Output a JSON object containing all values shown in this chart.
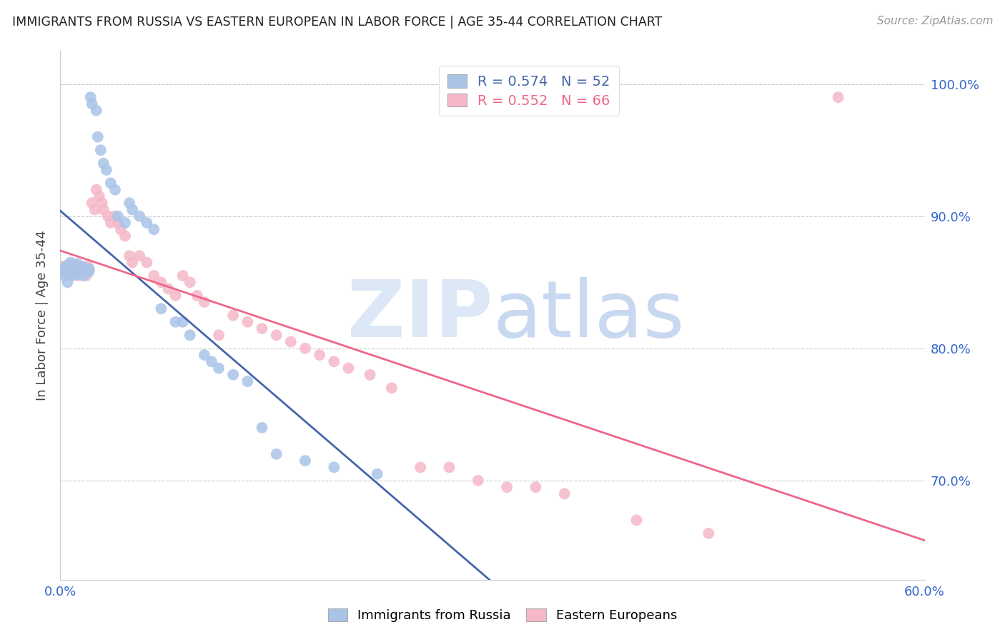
{
  "title": "IMMIGRANTS FROM RUSSIA VS EASTERN EUROPEAN IN LABOR FORCE | AGE 35-44 CORRELATION CHART",
  "source": "Source: ZipAtlas.com",
  "ylabel": "In Labor Force | Age 35-44",
  "legend_labels": [
    "Immigrants from Russia",
    "Eastern Europeans"
  ],
  "r_russia": 0.574,
  "n_russia": 52,
  "r_eastern": 0.552,
  "n_eastern": 66,
  "blue_color": "#aac4e8",
  "pink_color": "#f5b8c8",
  "blue_line_color": "#4466aa",
  "pink_line_color": "#ee6688",
  "background_color": "#ffffff",
  "xlim": [
    0.0,
    0.6
  ],
  "ylim": [
    0.625,
    1.025
  ],
  "ytick_vals": [
    0.7,
    0.8,
    0.9,
    1.0
  ],
  "ytick_labels": [
    "70.0%",
    "80.0%",
    "90.0%",
    "100.0%"
  ],
  "russia_x": [
    0.002,
    0.003,
    0.004,
    0.005,
    0.005,
    0.006,
    0.007,
    0.007,
    0.008,
    0.008,
    0.009,
    0.01,
    0.01,
    0.011,
    0.012,
    0.013,
    0.014,
    0.015,
    0.016,
    0.018,
    0.02,
    0.02,
    0.021,
    0.022,
    0.025,
    0.026,
    0.028,
    0.03,
    0.032,
    0.035,
    0.038,
    0.04,
    0.045,
    0.048,
    0.05,
    0.055,
    0.06,
    0.065,
    0.07,
    0.08,
    0.085,
    0.09,
    0.1,
    0.105,
    0.11,
    0.12,
    0.13,
    0.14,
    0.15,
    0.17,
    0.19,
    0.22
  ],
  "russia_y": [
    0.86,
    0.855,
    0.862,
    0.858,
    0.85,
    0.863,
    0.857,
    0.865,
    0.86,
    0.855,
    0.858,
    0.86,
    0.862,
    0.856,
    0.864,
    0.858,
    0.86,
    0.862,
    0.855,
    0.86,
    0.858,
    0.86,
    0.99,
    0.985,
    0.98,
    0.96,
    0.95,
    0.94,
    0.935,
    0.925,
    0.92,
    0.9,
    0.895,
    0.91,
    0.905,
    0.9,
    0.895,
    0.89,
    0.83,
    0.82,
    0.82,
    0.81,
    0.795,
    0.79,
    0.785,
    0.78,
    0.775,
    0.74,
    0.72,
    0.715,
    0.71,
    0.705
  ],
  "eastern_x": [
    0.002,
    0.003,
    0.004,
    0.005,
    0.005,
    0.006,
    0.007,
    0.007,
    0.008,
    0.009,
    0.01,
    0.011,
    0.012,
    0.013,
    0.014,
    0.015,
    0.016,
    0.017,
    0.018,
    0.019,
    0.02,
    0.022,
    0.024,
    0.025,
    0.027,
    0.029,
    0.03,
    0.033,
    0.035,
    0.038,
    0.04,
    0.042,
    0.045,
    0.048,
    0.05,
    0.055,
    0.06,
    0.065,
    0.07,
    0.075,
    0.08,
    0.085,
    0.09,
    0.095,
    0.1,
    0.11,
    0.12,
    0.13,
    0.14,
    0.15,
    0.16,
    0.17,
    0.18,
    0.19,
    0.2,
    0.215,
    0.23,
    0.25,
    0.27,
    0.29,
    0.31,
    0.33,
    0.35,
    0.4,
    0.45,
    0.54
  ],
  "eastern_y": [
    0.862,
    0.858,
    0.86,
    0.857,
    0.863,
    0.858,
    0.862,
    0.856,
    0.86,
    0.864,
    0.858,
    0.862,
    0.855,
    0.858,
    0.86,
    0.862,
    0.858,
    0.86,
    0.855,
    0.862,
    0.86,
    0.91,
    0.905,
    0.92,
    0.915,
    0.91,
    0.905,
    0.9,
    0.895,
    0.9,
    0.895,
    0.89,
    0.885,
    0.87,
    0.865,
    0.87,
    0.865,
    0.855,
    0.85,
    0.845,
    0.84,
    0.855,
    0.85,
    0.84,
    0.835,
    0.81,
    0.825,
    0.82,
    0.815,
    0.81,
    0.805,
    0.8,
    0.795,
    0.79,
    0.785,
    0.78,
    0.77,
    0.71,
    0.71,
    0.7,
    0.695,
    0.695,
    0.69,
    0.67,
    0.66,
    0.99
  ]
}
